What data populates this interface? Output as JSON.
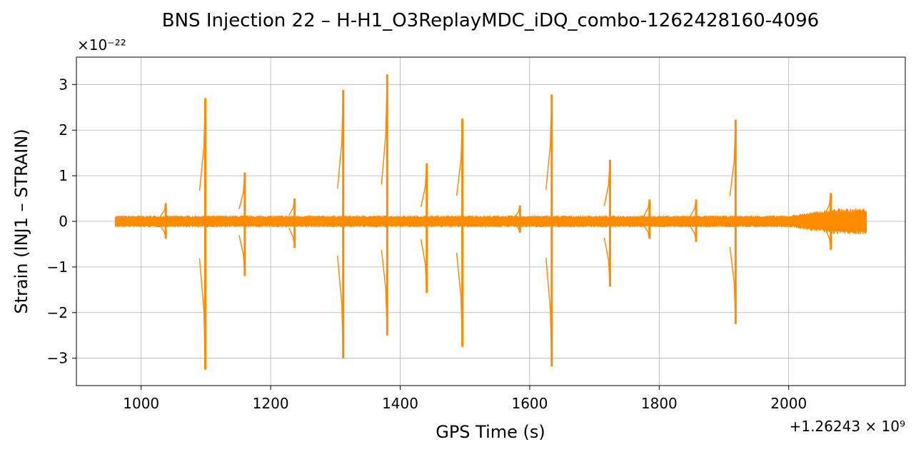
{
  "chart_data": {
    "type": "line",
    "title": "BNS Injection 22 – H-H1_O3ReplayMDC_iDQ_combo-1262428160-4096",
    "xlabel": "GPS Time (s)",
    "ylabel": "Strain (INJ1 – STRAIN)",
    "x_offset_text": "+1.26243 × 10⁹",
    "y_scale_text": "×10⁻²²",
    "xlim": [
      900,
      2180
    ],
    "ylim": [
      -3.6,
      3.6
    ],
    "x_ticks": [
      1000,
      1200,
      1400,
      1600,
      1800,
      2000
    ],
    "x_tick_labels": [
      "1000",
      "1200",
      "1400",
      "1600",
      "1800",
      "2000"
    ],
    "y_ticks": [
      -3,
      -2,
      -1,
      0,
      1,
      2,
      3
    ],
    "y_tick_labels": [
      "−3",
      "−2",
      "−1",
      "0",
      "1",
      "2",
      "3"
    ],
    "grid": true,
    "series_color": "#ff8c00",
    "series": [
      {
        "x_range": [
          960,
          2120
        ],
        "baseline_band": [
          -0.13,
          0.13
        ],
        "spikes": [
          {
            "x": 1038,
            "max": 0.4,
            "min": -0.38
          },
          {
            "x": 1099,
            "max": 2.7,
            "min": -3.25
          },
          {
            "x": 1160,
            "max": 1.07,
            "min": -1.2
          },
          {
            "x": 1237,
            "max": 0.5,
            "min": -0.58
          },
          {
            "x": 1312,
            "max": 2.88,
            "min": -3.0
          },
          {
            "x": 1380,
            "max": 3.22,
            "min": -2.5
          },
          {
            "x": 1441,
            "max": 1.27,
            "min": -1.57
          },
          {
            "x": 1496,
            "max": 2.25,
            "min": -2.75
          },
          {
            "x": 1585,
            "max": 0.35,
            "min": -0.25
          },
          {
            "x": 1634,
            "max": 2.78,
            "min": -3.18
          },
          {
            "x": 1724,
            "max": 1.35,
            "min": -1.43
          },
          {
            "x": 1785,
            "max": 0.48,
            "min": -0.38
          },
          {
            "x": 1857,
            "max": 0.48,
            "min": -0.45
          },
          {
            "x": 1918,
            "max": 2.23,
            "min": -2.25
          },
          {
            "x": 2065,
            "max": 0.62,
            "min": -0.62
          }
        ]
      }
    ]
  }
}
